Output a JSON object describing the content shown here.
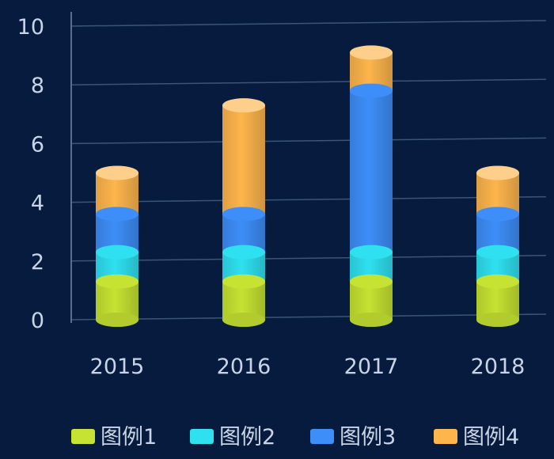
{
  "chart_data": {
    "type": "bar",
    "stacked": true,
    "style": "3d-cylinder",
    "title": "",
    "xlabel": "",
    "ylabel": "",
    "categories": [
      "2015",
      "2016",
      "2017",
      "2018"
    ],
    "ylim": [
      0,
      10
    ],
    "yticks": [
      "0",
      "2",
      "4",
      "6",
      "8",
      "10"
    ],
    "grid": true,
    "legend": "bottom",
    "series": [
      {
        "name": "图例1",
        "values": [
          1.3,
          1.3,
          1.3,
          1.3
        ],
        "color": "#c6e232"
      },
      {
        "name": "图例2",
        "values": [
          1.0,
          1.0,
          1.0,
          1.0
        ],
        "color": "#2fe0f0"
      },
      {
        "name": "图例3",
        "values": [
          1.3,
          1.3,
          5.5,
          1.3
        ],
        "color": "#3d8ef8"
      },
      {
        "name": "图例4",
        "values": [
          1.4,
          3.7,
          1.3,
          1.4
        ],
        "color": "#fdb54c"
      }
    ]
  }
}
